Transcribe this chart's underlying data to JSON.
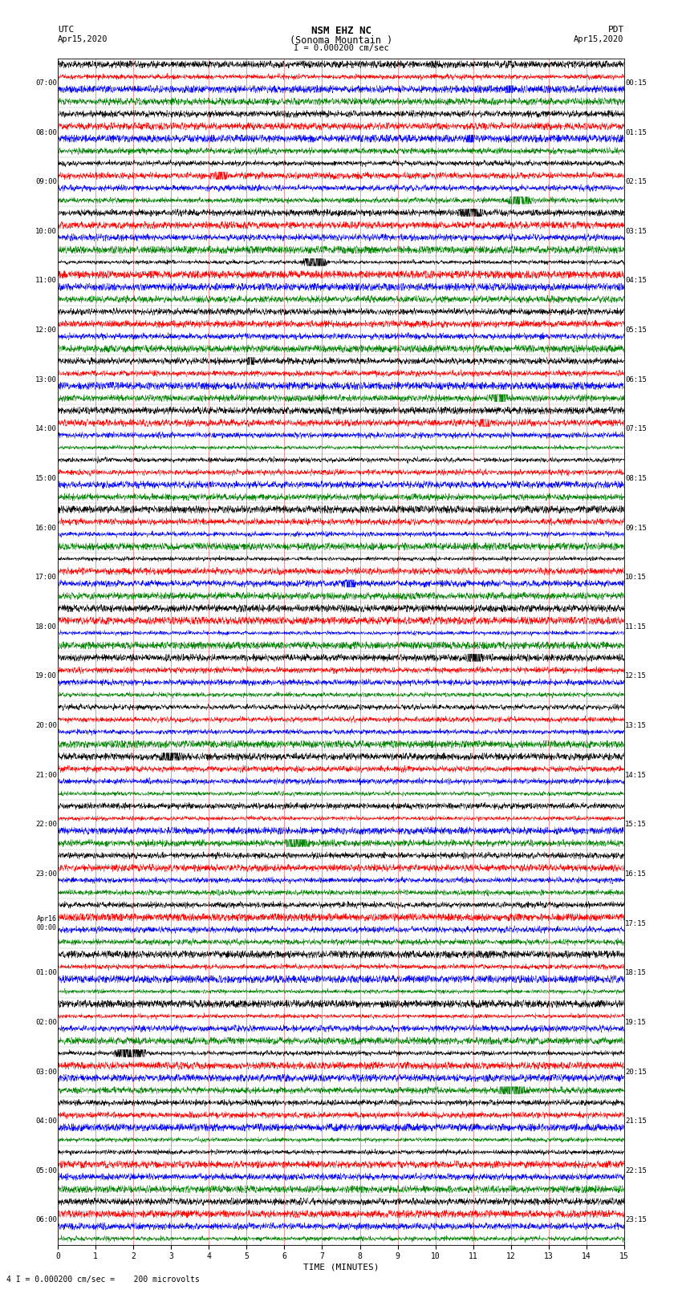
{
  "title_line1": "NSM EHZ NC",
  "title_line2": "(Sonoma Mountain )",
  "scale_label": "I = 0.000200 cm/sec",
  "bottom_label": "4 I = 0.000200 cm/sec =    200 microvolts",
  "xlabel": "TIME (MINUTES)",
  "utc_label": "UTC",
  "utc_date": "Apr15,2020",
  "pdt_label": "PDT",
  "pdt_date": "Apr15,2020",
  "left_times": [
    "07:00",
    "08:00",
    "09:00",
    "10:00",
    "11:00",
    "12:00",
    "13:00",
    "14:00",
    "15:00",
    "16:00",
    "17:00",
    "18:00",
    "19:00",
    "20:00",
    "21:00",
    "22:00",
    "23:00",
    "Apr16\n00:00",
    "01:00",
    "02:00",
    "03:00",
    "04:00",
    "05:00",
    "06:00"
  ],
  "right_times": [
    "00:15",
    "01:15",
    "02:15",
    "03:15",
    "04:15",
    "05:15",
    "06:15",
    "07:15",
    "08:15",
    "09:15",
    "10:15",
    "11:15",
    "12:15",
    "13:15",
    "14:15",
    "15:15",
    "16:15",
    "17:15",
    "18:15",
    "19:15",
    "20:15",
    "21:15",
    "22:15",
    "23:15"
  ],
  "colors": [
    "black",
    "red",
    "blue",
    "green"
  ],
  "n_rows": 96,
  "n_time_groups": 24,
  "xmin": 0,
  "xmax": 15,
  "background": "white",
  "grid_color": "#cc0000",
  "fig_width": 8.5,
  "fig_height": 16.13
}
